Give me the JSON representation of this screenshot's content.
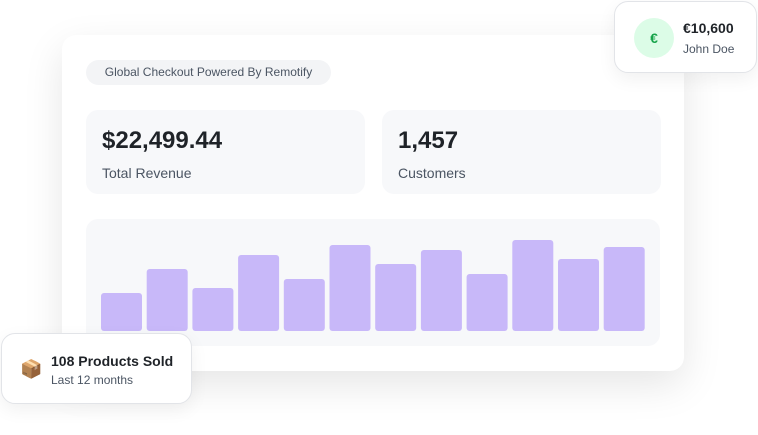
{
  "badge": "Global Checkout Powered By Remotify",
  "stats": [
    {
      "value": "$22,499.44",
      "label": "Total Revenue"
    },
    {
      "value": "1,457",
      "label": "Customers"
    }
  ],
  "chart": {
    "type": "bar",
    "values": [
      38,
      62,
      43,
      76,
      52,
      86,
      67,
      81,
      57,
      91,
      72,
      84
    ],
    "color": "#c8b8f9"
  },
  "payment": {
    "icon": "€",
    "amount": "€10,600",
    "name": "John Doe"
  },
  "products": {
    "icon": "📦",
    "title": "108 Products Sold",
    "subtitle": "Last 12 months"
  }
}
